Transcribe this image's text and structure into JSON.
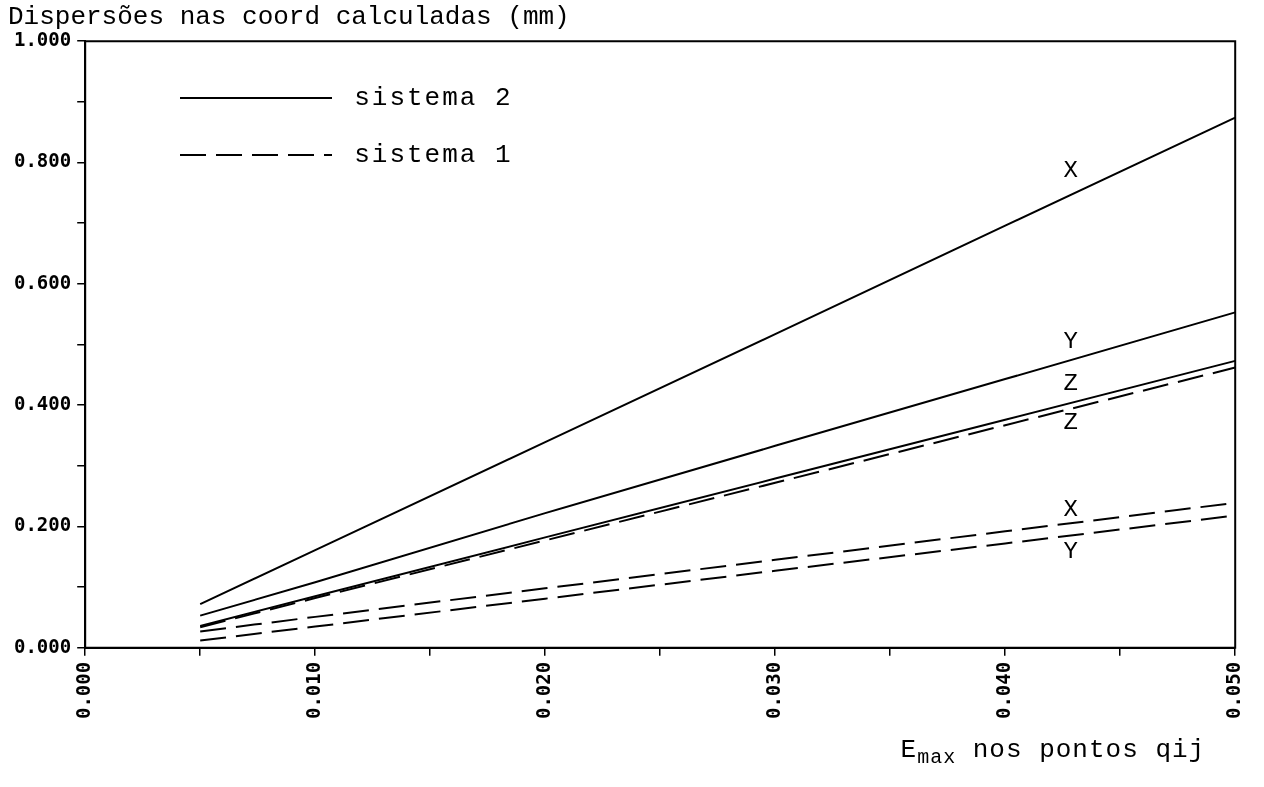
{
  "chart_data": {
    "type": "line",
    "title": "Dispersões nas coord calculadas (mm)",
    "xlabel": "E$_{max}$ nos pontos qij",
    "x": [
      0.005,
      0.01,
      0.02,
      0.03,
      0.04,
      0.05
    ],
    "series": [
      {
        "name": "X",
        "color": "#000000",
        "line_style": "solid",
        "values": [
          0.072,
          0.161,
          0.339,
          0.517,
          0.696,
          0.874
        ]
      },
      {
        "name": "Y",
        "color": "#000000",
        "line_style": "solid",
        "values": [
          0.053,
          0.108,
          0.222,
          0.333,
          0.443,
          0.553
        ]
      },
      {
        "name": "Z",
        "color": "#000000",
        "line_style": "solid",
        "values": [
          0.036,
          0.085,
          0.182,
          0.279,
          0.376,
          0.473
        ]
      },
      {
        "name": "X",
        "color": "#000000",
        "line_style": "dashed",
        "values": [
          0.027,
          0.051,
          0.098,
          0.145,
          0.192,
          0.239
        ]
      },
      {
        "name": "Y",
        "color": "#000000",
        "line_style": "dashed",
        "values": [
          0.012,
          0.035,
          0.081,
          0.127,
          0.172,
          0.218
        ]
      },
      {
        "name": "Z",
        "color": "#000000",
        "line_style": "dashed",
        "values": [
          0.034,
          0.082,
          0.177,
          0.272,
          0.367,
          0.462
        ]
      }
    ],
    "xlim": [
      0,
      0.05
    ],
    "ylim": [
      0,
      1
    ],
    "xticks": [
      {
        "value": 0,
        "label": "0.000"
      },
      {
        "value": 0.005,
        "label": null
      },
      {
        "value": 0.01,
        "label": "0.010"
      },
      {
        "value": 0.015,
        "label": null
      },
      {
        "value": 0.02,
        "label": "0.020"
      },
      {
        "value": 0.025,
        "label": null
      },
      {
        "value": 0.03,
        "label": "0.030"
      },
      {
        "value": 0.035,
        "label": null
      },
      {
        "value": 0.04,
        "label": "0.040"
      },
      {
        "value": 0.045,
        "label": null
      },
      {
        "value": 0.05,
        "label": "0.050"
      }
    ],
    "yticks": [
      {
        "value": 0,
        "label": "0.000"
      },
      {
        "value": 0.1,
        "label": null
      },
      {
        "value": 0.2,
        "label": "0.200"
      },
      {
        "value": 0.3,
        "label": null
      },
      {
        "value": 0.4,
        "label": "0.400"
      },
      {
        "value": 0.5,
        "label": null
      },
      {
        "value": 0.6,
        "label": "0.600"
      },
      {
        "value": 0.7,
        "label": null
      },
      {
        "value": 0.8,
        "label": "0.800"
      },
      {
        "value": 0.9,
        "label": null
      },
      {
        "value": 1,
        "label": "1.000"
      }
    ],
    "annotations": [
      "sistema 2",
      "sistema 1"
    ],
    "marker": "none"
  }
}
